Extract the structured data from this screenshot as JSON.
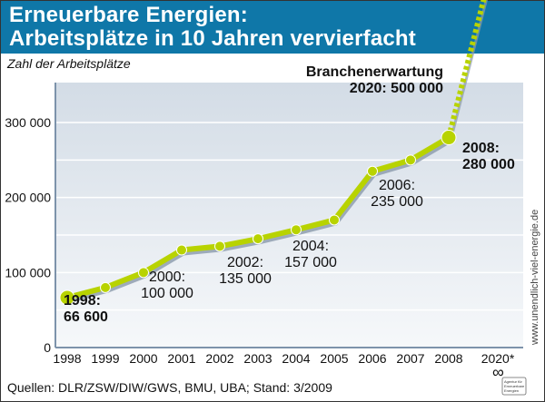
{
  "header": {
    "title_line1": "Erneuerbare Energien:",
    "title_line2": "Arbeitsplätze in 10 Jahren vervierfacht"
  },
  "colors": {
    "header_bg": "#0f77a8",
    "line": "#b8d300",
    "shadow": "#8a9aab",
    "plot_bg_top": "#d3dce6",
    "plot_bg_bottom": "#f6f8fa"
  },
  "chart_data": {
    "type": "line",
    "title": "Erneuerbare Energien: Arbeitsplätze in 10 Jahren vervierfacht",
    "ylabel": "Zahl der Arbeitsplätze",
    "xlabel": "",
    "ylim": [
      0,
      350000
    ],
    "grid": true,
    "grid_step": 50000,
    "y_ticks": [
      {
        "value": 0,
        "label": "0"
      },
      {
        "value": 100000,
        "label": "100 000"
      },
      {
        "value": 200000,
        "label": "200 000"
      },
      {
        "value": 300000,
        "label": "300 000"
      }
    ],
    "x_tick_labels": [
      "1998",
      "1999",
      "2000",
      "2001",
      "2002",
      "2003",
      "2004",
      "2005",
      "2006",
      "2007",
      "2008",
      "2020*"
    ],
    "series": [
      {
        "name": "Arbeitsplätze",
        "points": [
          {
            "x": 1998,
            "y": 66600
          },
          {
            "x": 1999,
            "y": 80000
          },
          {
            "x": 2000,
            "y": 100000
          },
          {
            "x": 2001,
            "y": 130000
          },
          {
            "x": 2002,
            "y": 135000
          },
          {
            "x": 2003,
            "y": 145000
          },
          {
            "x": 2004,
            "y": 157000
          },
          {
            "x": 2005,
            "y": 170000
          },
          {
            "x": 2006,
            "y": 235000
          },
          {
            "x": 2007,
            "y": 250000
          },
          {
            "x": 2008,
            "y": 280000
          }
        ]
      },
      {
        "name": "Branchenerwartung",
        "projection": true,
        "points": [
          {
            "x": 2008,
            "y": 280000
          },
          {
            "x": 2020,
            "y": 500000
          }
        ]
      }
    ],
    "annotations": [
      {
        "year": 1998,
        "line1": "1998:",
        "line2": "66 600",
        "bold": true
      },
      {
        "year": 2000,
        "line1": "2000:",
        "line2": "100 000",
        "bold": false
      },
      {
        "year": 2002,
        "line1": "2002:",
        "line2": "135 000",
        "bold": false
      },
      {
        "year": 2004,
        "line1": "2004:",
        "line2": "157 000",
        "bold": false
      },
      {
        "year": 2006,
        "line1": "2006:",
        "line2": "235 000",
        "bold": false
      },
      {
        "year": 2008,
        "line1": "2008:",
        "line2": "280 000",
        "bold": true
      },
      {
        "year": 2020,
        "line1": "Branchenerwartung",
        "line2": "2020: 500 000",
        "bold": true
      }
    ]
  },
  "footer": {
    "source": "Quellen: DLR/ZSW/DIW/GWS, BMU, UBA; Stand: 3/2009",
    "watermark": "www.unendlich-viel-energie.de",
    "logo_line1": "Agentur für",
    "logo_line2": "Erneuerbare",
    "logo_line3": "Energien"
  }
}
